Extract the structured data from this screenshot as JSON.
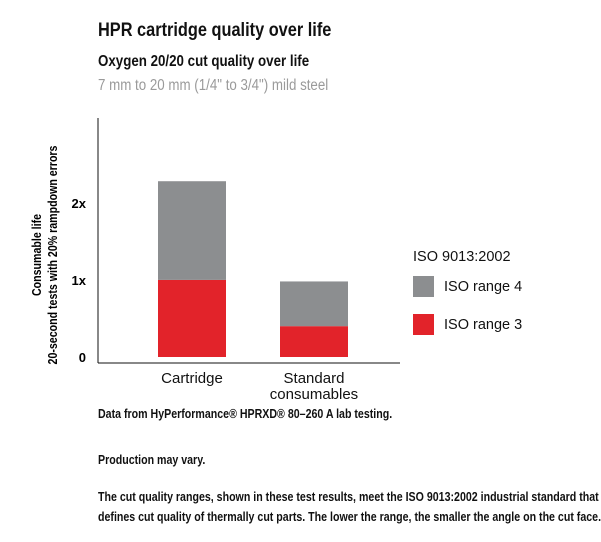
{
  "header": {
    "title": "HPR cartridge quality over life",
    "subtitle": "Oxygen 20/20 cut quality over life",
    "subtitle2": "7 mm to 20 mm (1/4\" to 3/4\") mild steel"
  },
  "chart_data": {
    "type": "bar",
    "stacked": true,
    "categories": [
      "Cartridge",
      "Standard\nconsumables"
    ],
    "series": [
      {
        "name": "ISO range 3",
        "values": [
          1.0,
          0.4
        ],
        "color": "#e2232a"
      },
      {
        "name": "ISO range 4",
        "values": [
          1.28,
          0.58
        ],
        "color": "#8c8e90"
      }
    ],
    "ylabel_line1": "Consumable life",
    "ylabel_line2": "20-second tests with 20% rampdown errors",
    "yticks": [
      {
        "value": 0,
        "label": "0"
      },
      {
        "value": 1,
        "label": "1x"
      },
      {
        "value": 2,
        "label": "2x"
      }
    ],
    "ylim": [
      0,
      3.1
    ],
    "grid": false,
    "legend_title": "ISO 9013:2002",
    "legend_position": "right"
  },
  "notes": [
    "Data from HyPerformance® HPRXD® 80–260 A lab testing.",
    "Production may vary.",
    "The cut quality ranges, shown in these test results, meet the ISO 9013:2002 industrial standard that",
    "defines cut quality of thermally cut parts. The lower the range, the smaller the angle on the cut face."
  ]
}
